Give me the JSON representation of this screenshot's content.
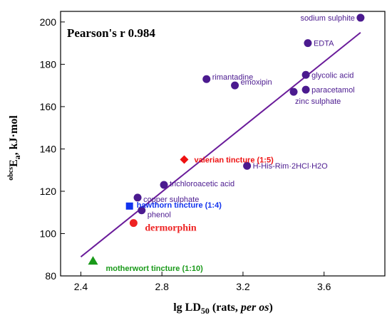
{
  "chart_data": {
    "type": "scatter",
    "title": "",
    "annotation": "Pearson's r 0.984",
    "xlabel": {
      "prefix": "lg LD",
      "subscript": "50",
      "middle": " (rats, ",
      "italic": "per os",
      "suffix": ")"
    },
    "ylabel": {
      "superscript": "obcs",
      "main": "E",
      "subscript": "a",
      "suffix": ", kJ·mol"
    },
    "xlim": [
      2.3,
      3.9
    ],
    "ylim": [
      80,
      205
    ],
    "xticks": [
      2.4,
      2.8,
      3.2,
      3.6
    ],
    "yticks": [
      80,
      100,
      120,
      140,
      160,
      180,
      200
    ],
    "grid": false,
    "regression_line": {
      "x": [
        2.4,
        3.78
      ],
      "y": [
        89,
        195
      ],
      "color": "#6a1b9a"
    },
    "points": [
      {
        "label": "sodium sulphite",
        "x": 3.78,
        "y": 202,
        "marker": "circle",
        "color": "#4b1a8f"
      },
      {
        "label": "EDTA",
        "x": 3.52,
        "y": 190,
        "marker": "circle",
        "color": "#4b1a8f"
      },
      {
        "label": "glycolic acid",
        "x": 3.51,
        "y": 175,
        "marker": "circle",
        "color": "#4b1a8f"
      },
      {
        "label": "paracetamol",
        "x": 3.51,
        "y": 168,
        "marker": "circle",
        "color": "#4b1a8f"
      },
      {
        "label": "zinc sulphate",
        "x": 3.45,
        "y": 167,
        "marker": "circle",
        "color": "#4b1a8f"
      },
      {
        "label": "rimantadine",
        "x": 3.02,
        "y": 173,
        "marker": "circle",
        "color": "#4b1a8f"
      },
      {
        "label": "emoxipin",
        "x": 3.16,
        "y": 170,
        "marker": "circle",
        "color": "#4b1a8f"
      },
      {
        "label": "H-His-Rim·2HCl·H2O",
        "x": 3.22,
        "y": 132,
        "marker": "circle",
        "color": "#4b1a8f"
      },
      {
        "label": "trichloroacetic acid",
        "x": 2.81,
        "y": 123,
        "marker": "circle",
        "color": "#4b1a8f"
      },
      {
        "label": "copper sulphate",
        "x": 2.68,
        "y": 117,
        "marker": "circle",
        "color": "#4b1a8f"
      },
      {
        "label": "phenol",
        "x": 2.7,
        "y": 111,
        "marker": "circle",
        "color": "#4b1a8f"
      },
      {
        "label": "valerian tincture (1:5)",
        "x": 2.91,
        "y": 135,
        "marker": "diamond",
        "color": "#ee1111"
      },
      {
        "label": "hawthorn tincture (1:4)",
        "x": 2.64,
        "y": 113,
        "marker": "square",
        "color": "#1133ee"
      },
      {
        "label": "dermorphin",
        "x": 2.66,
        "y": 105,
        "marker": "circle",
        "color": "#ee2222"
      },
      {
        "label": "motherwort tincture (1:10)",
        "x": 2.46,
        "y": 87,
        "marker": "triangle",
        "color": "#1a9a1a"
      }
    ]
  }
}
